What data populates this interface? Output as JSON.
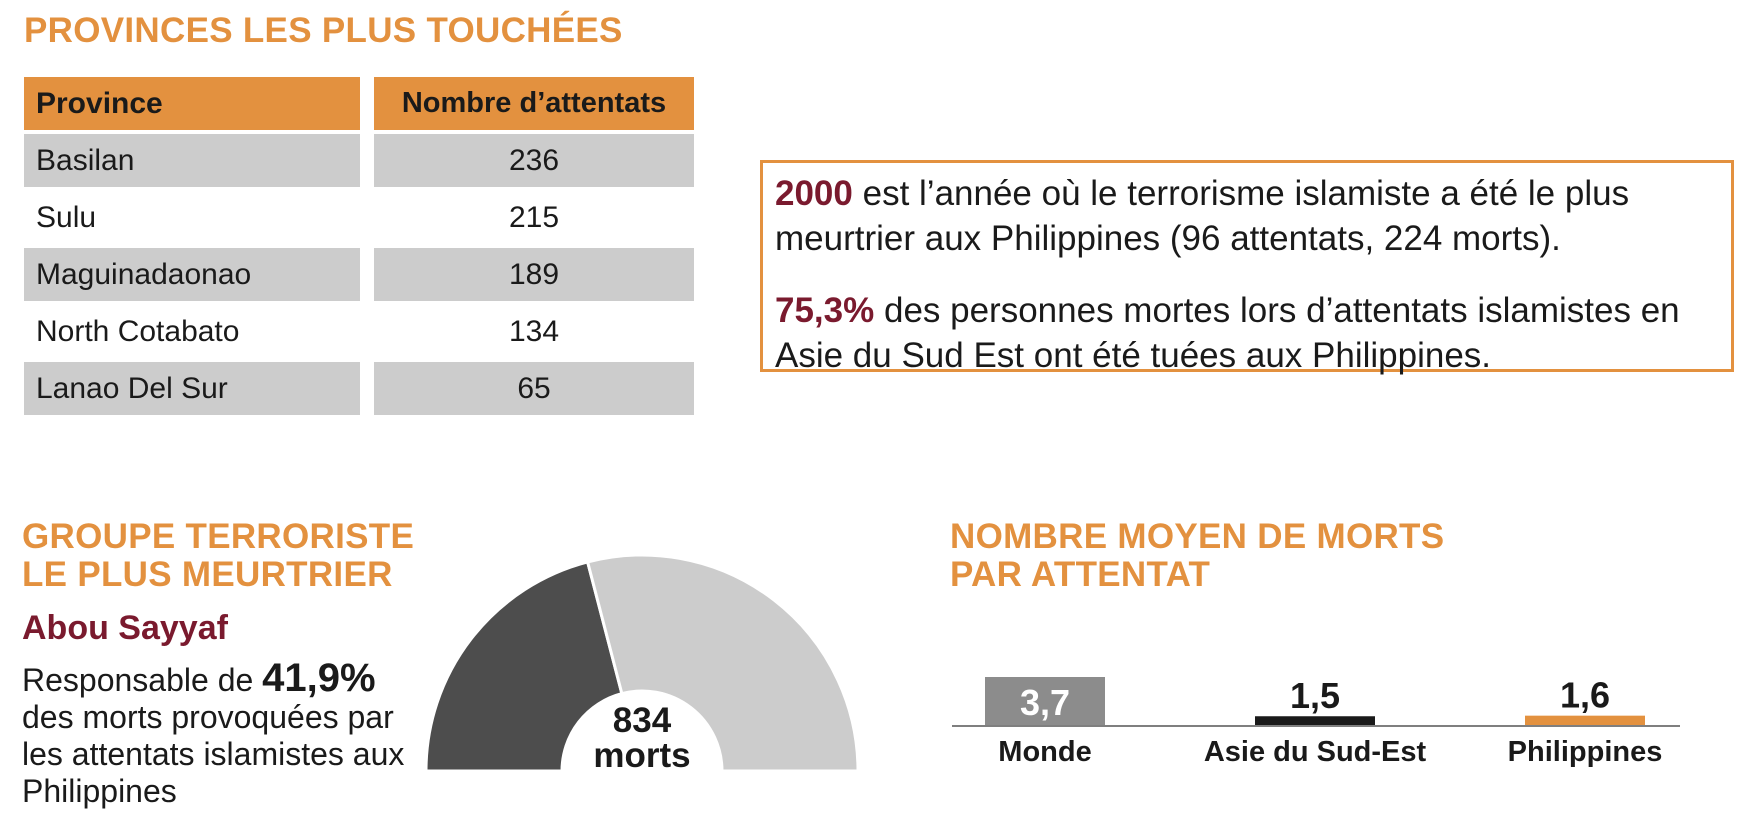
{
  "provinces_section": {
    "heading": "PROVINCES LES PLUS TOUCHÉES",
    "columns": [
      "Province",
      "Nombre d’attentats"
    ],
    "rows": [
      {
        "province": "Basilan",
        "count": "236"
      },
      {
        "province": "Sulu",
        "count": "215"
      },
      {
        "province": "Maguinadaonao",
        "count": "189"
      },
      {
        "province": "North Cotabato",
        "count": "134"
      },
      {
        "province": "Lanao Del Sur",
        "count": "65"
      }
    ]
  },
  "facts": {
    "fact1_highlight": "2000",
    "fact1_text": " est l’année où le terrorisme islamiste a été le plus meurtrier aux Philippines (96 attentats, 224 morts).",
    "fact2_highlight": "75,3%",
    "fact2_text": " des personnes mortes lors d’attentats islamistes en Asie du Sud Est ont été tuées aux Philippines."
  },
  "group_section": {
    "heading_line1": "GROUPE TERRORISTE",
    "heading_line2": "LE PLUS MEURTRIER",
    "group_name": "Abou Sayyaf",
    "desc_prefix": "Responsable de ",
    "desc_percent": "41,9%",
    "desc_suffix": " des morts provoquées par les attentats islamistes aux Philippines",
    "center_value": "834",
    "center_unit": "morts"
  },
  "avg_section": {
    "heading_line1": "NOMBRE MOYEN DE MORTS",
    "heading_line2": "PAR ATTENTAT"
  },
  "colors": {
    "accent": "#e3913f",
    "highlight": "#7a1a2e",
    "dark_gray": "#4d4d4d",
    "light_gray": "#cccccc",
    "mid_gray": "#8c8c8c",
    "black": "#1a1a1a"
  },
  "chart_data": [
    {
      "type": "pie",
      "style": "half-donut",
      "slices": [
        {
          "label": "Abou Sayyaf",
          "value": 41.9,
          "color": "#4d4d4d"
        },
        {
          "label": "",
          "value": 58.1,
          "color": "#cccccc"
        }
      ],
      "center_text": "834 morts"
    },
    {
      "type": "bar",
      "categories": [
        "Monde",
        "Asie du Sud-Est",
        "Philippines"
      ],
      "values": [
        3.7,
        1.5,
        1.6
      ],
      "value_labels": [
        "3,7",
        "1,5",
        "1,6"
      ],
      "colors": [
        "#8c8c8c",
        "#1a1a1a",
        "#e3913f"
      ],
      "title": "NOMBRE MOYEN DE MORTS PAR ATTENTAT",
      "ylim": [
        0,
        3.7
      ]
    }
  ]
}
